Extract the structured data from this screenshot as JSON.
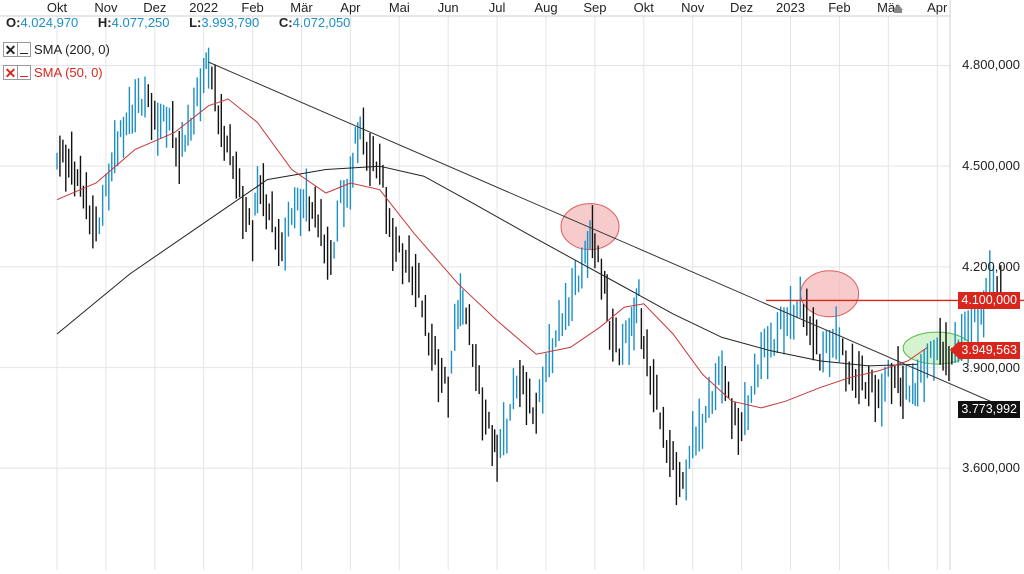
{
  "header": {
    "open": {
      "label": "O:",
      "value": "4.024,970"
    },
    "high": {
      "label": "H:",
      "value": "4.077,250"
    },
    "low": {
      "label": "L:",
      "value": "3.993,790"
    },
    "close": {
      "label": "C:",
      "value": "4.072,050"
    }
  },
  "legend": [
    {
      "name": "SMA (200, 0)",
      "color": "#222222"
    },
    {
      "name": "SMA (50, 0)",
      "color": "#d9261c"
    }
  ],
  "price_tags": [
    {
      "value": "4.100,000",
      "price": 4100,
      "bg": "#d9261c",
      "arrow": false
    },
    {
      "value": "3.949,563",
      "price": 3949.563,
      "bg": "#d9261c",
      "arrow": true
    },
    {
      "value": "3.773,992",
      "price": 3773.992,
      "bg": "#111111",
      "arrow": false
    }
  ],
  "colors": {
    "price_bars": "#1c8fc4",
    "sma200": "#222222",
    "sma50": "#c8363a",
    "trendline": "#333333",
    "horizontal_line": "#d9261c",
    "circle_red_fill": "#f4b9b9",
    "circle_red_stroke": "#e05a5a",
    "circle_green_fill": "#c7efbd",
    "circle_green_stroke": "#57b94a",
    "grid": "#e4e4e4"
  },
  "icons": {
    "event_marker": "up-triangle-marker-icon"
  },
  "chart_data": {
    "type": "line",
    "subtype": "ohlc_price_chart",
    "x_ticks": [
      "Okt",
      "Nov",
      "Dez",
      "2022",
      "Feb",
      "Mär",
      "Apr",
      "Mai",
      "Jun",
      "Jul",
      "Aug",
      "Sep",
      "Okt",
      "Nov",
      "Dez",
      "2023",
      "Feb",
      "Mär",
      "Apr"
    ],
    "y_ticks": [
      "4.800,000",
      "4.500,000",
      "4.200,000",
      "3.900,000",
      "3.600,000"
    ],
    "y_tick_values": [
      4800,
      4500,
      4200,
      3900,
      3600
    ],
    "ylim": [
      3390,
      4995
    ],
    "grid": true,
    "series": [
      {
        "name": "Price",
        "points": [
          [
            0,
            4545
          ],
          [
            0.3,
            4500
          ],
          [
            0.6,
            4400
          ],
          [
            0.8,
            4310
          ],
          [
            1.0,
            4420
          ],
          [
            1.3,
            4600
          ],
          [
            1.6,
            4680
          ],
          [
            1.8,
            4700
          ],
          [
            2.0,
            4640
          ],
          [
            2.3,
            4640
          ],
          [
            2.5,
            4520
          ],
          [
            2.8,
            4670
          ],
          [
            3.0,
            4770
          ],
          [
            3.1,
            4810
          ],
          [
            3.3,
            4650
          ],
          [
            3.6,
            4520
          ],
          [
            3.8,
            4380
          ],
          [
            4.0,
            4290
          ],
          [
            4.1,
            4460
          ],
          [
            4.4,
            4340
          ],
          [
            4.6,
            4230
          ],
          [
            4.8,
            4380
          ],
          [
            5.1,
            4390
          ],
          [
            5.4,
            4320
          ],
          [
            5.6,
            4210
          ],
          [
            5.8,
            4400
          ],
          [
            6.0,
            4420
          ],
          [
            6.1,
            4580
          ],
          [
            6.2,
            4620
          ],
          [
            6.4,
            4520
          ],
          [
            6.6,
            4500
          ],
          [
            6.8,
            4320
          ],
          [
            7.0,
            4250
          ],
          [
            7.2,
            4200
          ],
          [
            7.4,
            4130
          ],
          [
            7.6,
            4000
          ],
          [
            7.8,
            3900
          ],
          [
            8.0,
            3830
          ],
          [
            8.2,
            4070
          ],
          [
            8.3,
            4110
          ],
          [
            8.5,
            3960
          ],
          [
            8.7,
            3780
          ],
          [
            8.9,
            3680
          ],
          [
            9.0,
            3660
          ],
          [
            9.2,
            3720
          ],
          [
            9.4,
            3860
          ],
          [
            9.6,
            3820
          ],
          [
            9.8,
            3770
          ],
          [
            10.0,
            3900
          ],
          [
            10.2,
            3980
          ],
          [
            10.4,
            4070
          ],
          [
            10.6,
            4150
          ],
          [
            10.8,
            4220
          ],
          [
            10.9,
            4290
          ],
          [
            11.0,
            4260
          ],
          [
            11.2,
            4160
          ],
          [
            11.3,
            4020
          ],
          [
            11.5,
            3950
          ],
          [
            11.7,
            3990
          ],
          [
            11.8,
            4060
          ],
          [
            11.9,
            4120
          ],
          [
            12.0,
            3960
          ],
          [
            12.2,
            3840
          ],
          [
            12.4,
            3710
          ],
          [
            12.6,
            3620
          ],
          [
            12.8,
            3540
          ],
          [
            13.0,
            3670
          ],
          [
            13.2,
            3740
          ],
          [
            13.4,
            3820
          ],
          [
            13.6,
            3890
          ],
          [
            13.8,
            3760
          ],
          [
            14.0,
            3730
          ],
          [
            14.2,
            3820
          ],
          [
            14.4,
            3930
          ],
          [
            14.6,
            3970
          ],
          [
            14.8,
            4030
          ],
          [
            15.0,
            4040
          ],
          [
            15.2,
            4080
          ],
          [
            15.4,
            4040
          ],
          [
            15.6,
            3940
          ],
          [
            15.8,
            3960
          ],
          [
            16.0,
            3980
          ],
          [
            16.2,
            3890
          ],
          [
            16.4,
            3870
          ],
          [
            16.6,
            3840
          ],
          [
            16.8,
            3810
          ],
          [
            17.0,
            3880
          ],
          [
            17.2,
            3870
          ],
          [
            17.3,
            3820
          ],
          [
            17.5,
            3840
          ],
          [
            17.6,
            3860
          ],
          [
            17.8,
            3920
          ],
          [
            18.0,
            3950
          ],
          [
            18.3,
            3940
          ],
          [
            18.5,
            3990
          ],
          [
            18.7,
            4020
          ],
          [
            18.9,
            4050
          ],
          [
            19.0,
            4130
          ],
          [
            19.15,
            4175
          ],
          [
            19.3,
            4120
          ]
        ]
      },
      {
        "name": "SMA (200, 0)",
        "points": [
          [
            0,
            4000
          ],
          [
            1.5,
            4180
          ],
          [
            3,
            4330
          ],
          [
            4.3,
            4460
          ],
          [
            5.5,
            4490
          ],
          [
            6.6,
            4500
          ],
          [
            7.5,
            4470
          ],
          [
            8.5,
            4390
          ],
          [
            9.6,
            4300
          ],
          [
            10.6,
            4220
          ],
          [
            11.6,
            4140
          ],
          [
            12.6,
            4060
          ],
          [
            13.6,
            3990
          ],
          [
            14.6,
            3950
          ],
          [
            15.6,
            3920
          ],
          [
            16.6,
            3905
          ],
          [
            17.6,
            3910
          ]
        ]
      },
      {
        "name": "SMA (50, 0)",
        "points": [
          [
            0,
            4400
          ],
          [
            0.8,
            4450
          ],
          [
            1.6,
            4550
          ],
          [
            2.4,
            4600
          ],
          [
            3.1,
            4680
          ],
          [
            3.5,
            4700
          ],
          [
            4.1,
            4630
          ],
          [
            4.8,
            4490
          ],
          [
            5.5,
            4420
          ],
          [
            6.0,
            4450
          ],
          [
            6.6,
            4430
          ],
          [
            7.3,
            4300
          ],
          [
            8.2,
            4150
          ],
          [
            9.0,
            4040
          ],
          [
            9.8,
            3940
          ],
          [
            10.5,
            3960
          ],
          [
            11.1,
            4020
          ],
          [
            11.6,
            4080
          ],
          [
            12.0,
            4090
          ],
          [
            12.6,
            4000
          ],
          [
            13.2,
            3880
          ],
          [
            13.8,
            3800
          ],
          [
            14.4,
            3780
          ],
          [
            14.9,
            3800
          ],
          [
            15.6,
            3840
          ],
          [
            16.2,
            3870
          ],
          [
            16.8,
            3890
          ],
          [
            17.4,
            3920
          ],
          [
            17.8,
            3960
          ]
        ]
      }
    ],
    "annotations": {
      "trendline": {
        "from": [
          3.1,
          4810
        ],
        "to": [
          19.4,
          3780
        ]
      },
      "horizontal_line": {
        "from": [
          14.5,
          4100
        ],
        "to": [
          20.5,
          4100
        ]
      },
      "circles": [
        {
          "center": [
            10.9,
            4320
          ],
          "color": "red"
        },
        {
          "center": [
            15.8,
            4120
          ],
          "color": "red"
        },
        {
          "center": [
            18.0,
            3958
          ],
          "color": "green"
        }
      ],
      "event_marker_at": [
        17.2,
        4975
      ]
    }
  }
}
